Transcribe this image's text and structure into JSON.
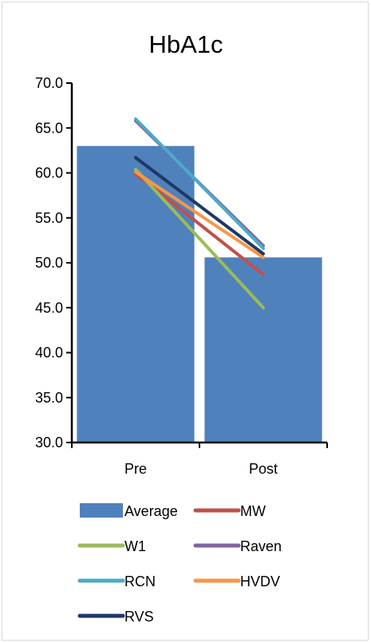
{
  "chart_data": {
    "type": "bar",
    "title": "HbA1c",
    "categories": [
      "Pre",
      "Post"
    ],
    "ylim": [
      30.0,
      70.0
    ],
    "yticks": [
      "30.0",
      "35.0",
      "40.0",
      "45.0",
      "50.0",
      "55.0",
      "60.0",
      "65.0",
      "70.0"
    ],
    "grid": false,
    "legend_position": "bottom",
    "series": [
      {
        "name": "Average",
        "kind": "bar",
        "color": "#4f81bd",
        "values": [
          63.0,
          50.6
        ]
      },
      {
        "name": "MW",
        "kind": "line",
        "color": "#c0504d",
        "values": [
          59.9,
          48.7
        ]
      },
      {
        "name": "W1",
        "kind": "line",
        "color": "#9bbb59",
        "values": [
          60.4,
          45.0
        ]
      },
      {
        "name": "Raven",
        "kind": "line",
        "color": "#8064a2",
        "values": [
          65.8,
          51.9
        ]
      },
      {
        "name": "RCN",
        "kind": "line",
        "color": "#4bacc6",
        "values": [
          66.0,
          51.6
        ]
      },
      {
        "name": "HVDV",
        "kind": "line",
        "color": "#f79646",
        "values": [
          60.1,
          50.6
        ]
      },
      {
        "name": "RVS",
        "kind": "line",
        "color": "#1f3864",
        "values": [
          61.7,
          51.0
        ]
      }
    ]
  }
}
